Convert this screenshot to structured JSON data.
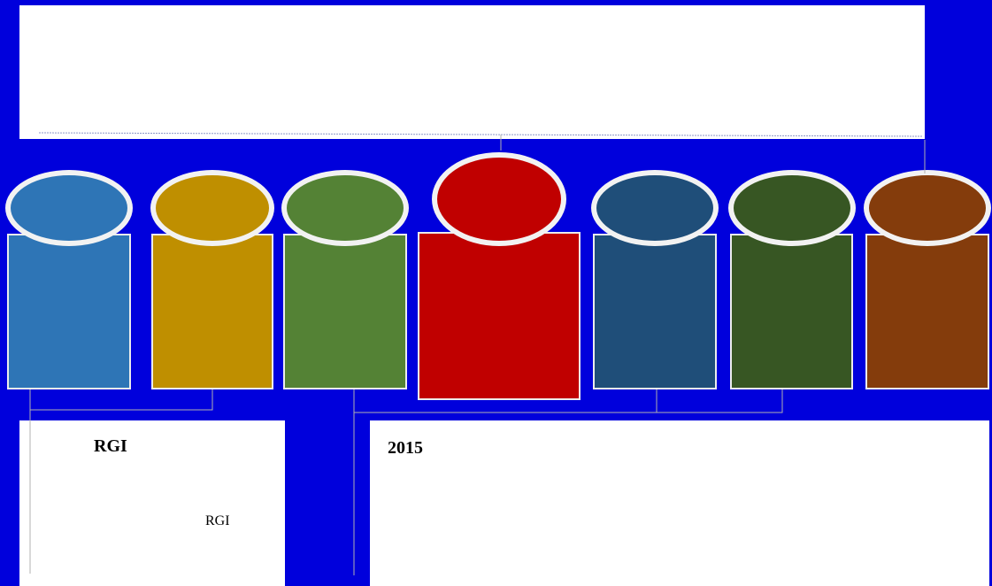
{
  "columns": [
    {
      "id": "col-1",
      "color": "#2e75b6"
    },
    {
      "id": "col-2",
      "color": "#bf8f00"
    },
    {
      "id": "col-3",
      "color": "#548235"
    },
    {
      "id": "col-4",
      "color": "#c00000"
    },
    {
      "id": "col-5",
      "color": "#1f4e79"
    },
    {
      "id": "col-6",
      "color": "#375623"
    },
    {
      "id": "col-7",
      "color": "#843c0c"
    }
  ],
  "left_box": {
    "title": "RGI",
    "subtitle": "RGI"
  },
  "right_box": {
    "title": "2015"
  }
}
